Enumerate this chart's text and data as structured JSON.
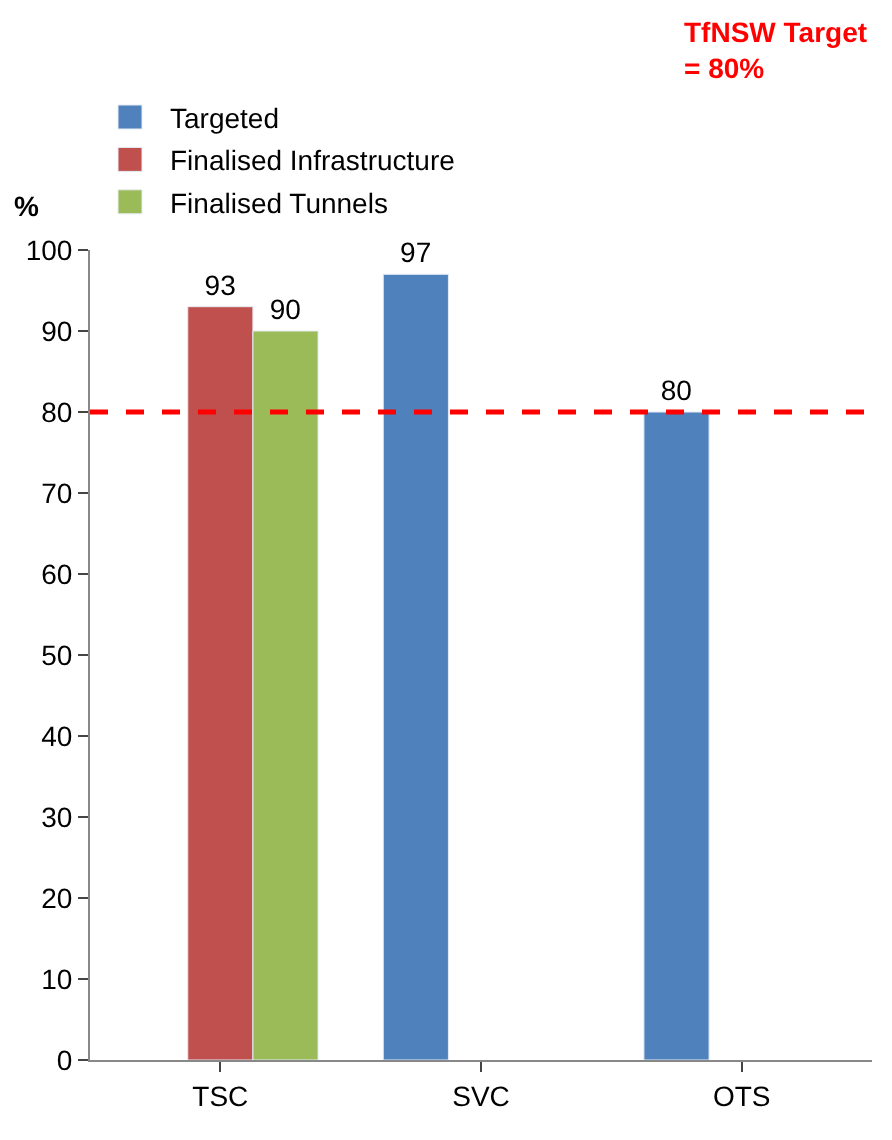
{
  "chart_data": {
    "type": "bar",
    "ylabel": "%",
    "categories": [
      "TSC",
      "SVC",
      "OTS"
    ],
    "series": [
      {
        "name": "Targeted",
        "color": "#4f81bd",
        "values": [
          null,
          97,
          80
        ]
      },
      {
        "name": "Finalised Infrastructure",
        "color": "#c0504d",
        "values": [
          93,
          null,
          null
        ]
      },
      {
        "name": "Finalised Tunnels",
        "color": "#9bbb59",
        "values": [
          90,
          null,
          null
        ]
      }
    ],
    "ylim": [
      0,
      100
    ],
    "yticks": [
      0,
      10,
      20,
      30,
      40,
      50,
      60,
      70,
      80,
      90,
      100
    ],
    "legend": "top left",
    "data_labels": true,
    "ref_lines": [
      {
        "axis": "y",
        "value": 80,
        "label": "TfNSW Target\n= 80%",
        "color": "#ff0000",
        "line_style": "dashed"
      }
    ]
  }
}
